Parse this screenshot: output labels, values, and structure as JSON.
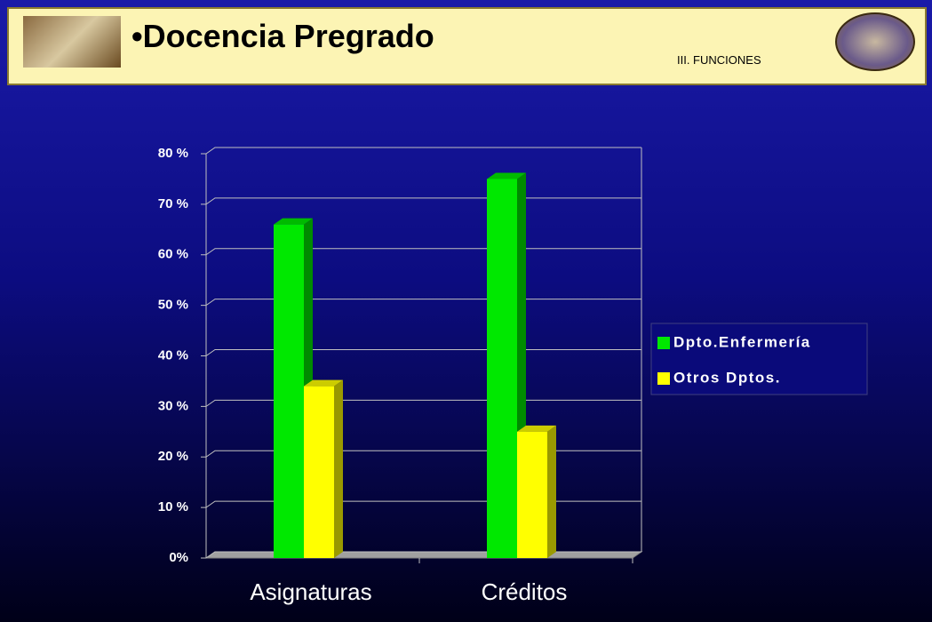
{
  "header": {
    "title": "Docencia Pregrado",
    "subtitle": "III. FUNCIONES"
  },
  "chart_data": {
    "type": "bar",
    "categories": [
      "Asignaturas",
      "Créditos"
    ],
    "series": [
      {
        "name": "Dpto.Enfermería",
        "color": "#00e800",
        "values": [
          66,
          75
        ]
      },
      {
        "name": "Otros Dptos.",
        "color": "#ffff00",
        "values": [
          34,
          25
        ]
      }
    ],
    "ylim": [
      0,
      80
    ],
    "yticks": [
      {
        "value": 0,
        "label": "0%"
      },
      {
        "value": 10,
        "label": "10 %"
      },
      {
        "value": 20,
        "label": "20 %"
      },
      {
        "value": 30,
        "label": "30 %"
      },
      {
        "value": 40,
        "label": "40 %"
      },
      {
        "value": 50,
        "label": "50 %"
      },
      {
        "value": 60,
        "label": "60 %"
      },
      {
        "value": 70,
        "label": "70 %"
      },
      {
        "value": 80,
        "label": "80 %"
      }
    ],
    "grid": true,
    "legend": "right"
  }
}
